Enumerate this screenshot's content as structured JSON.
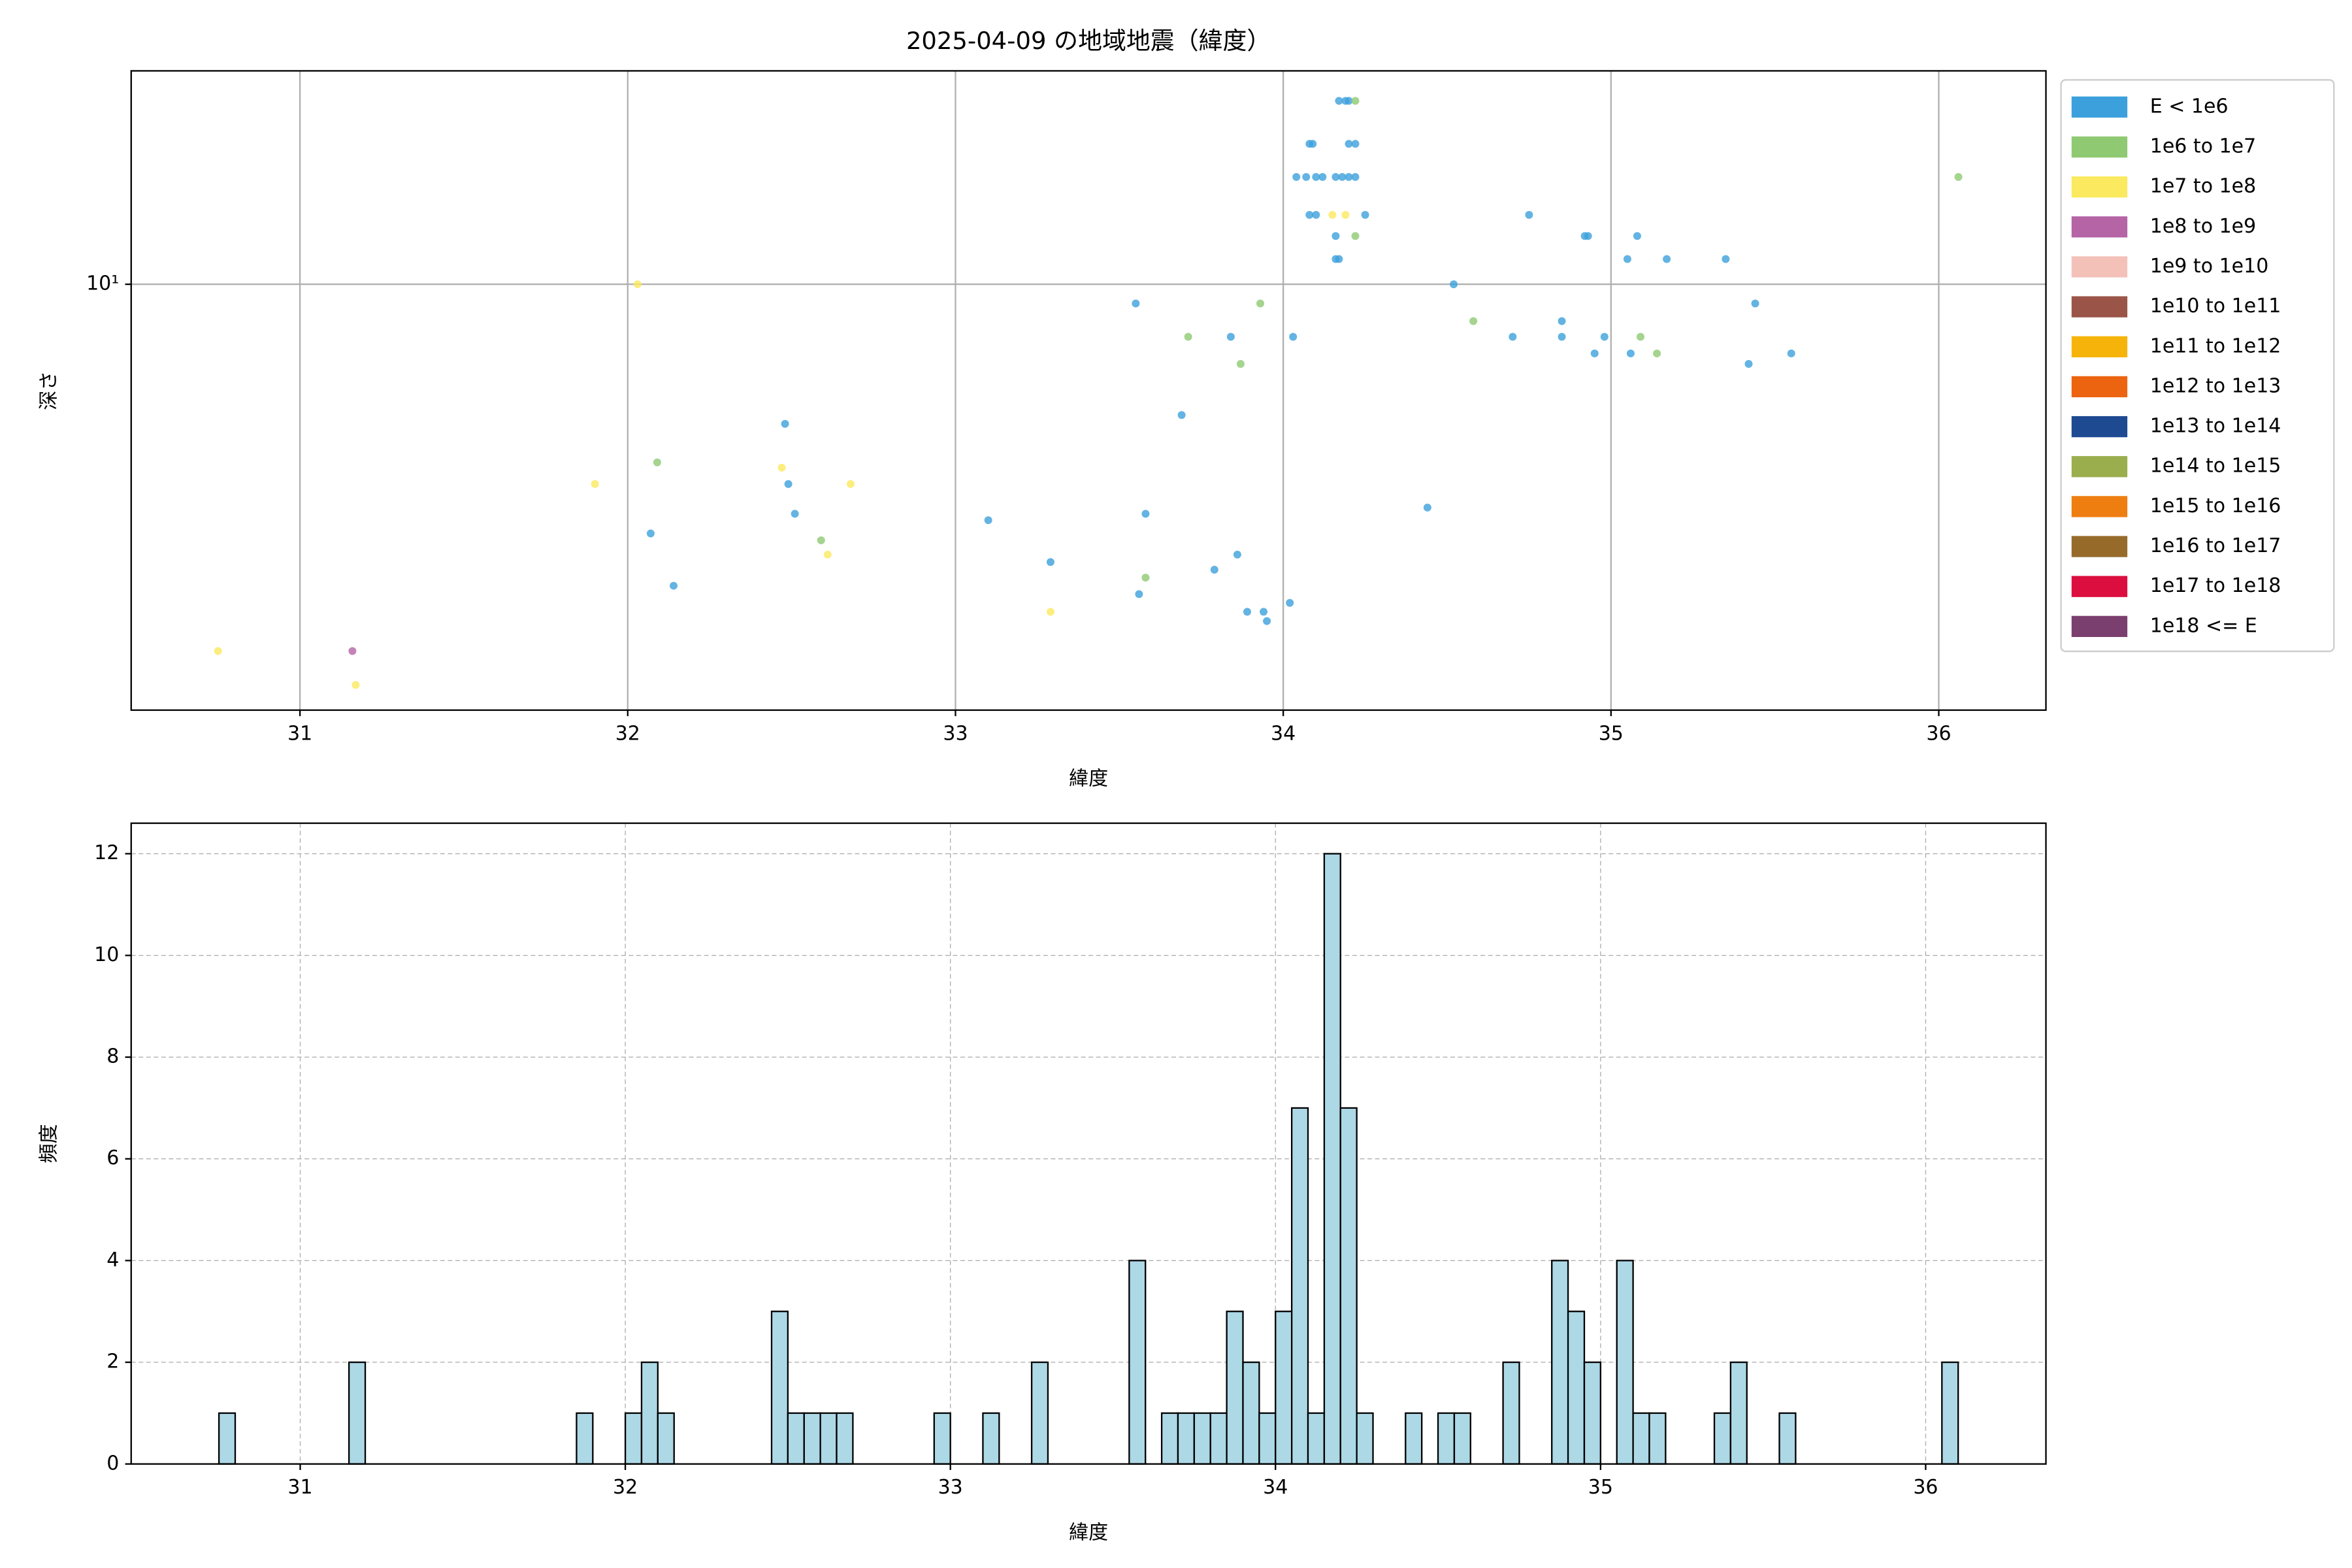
{
  "chart_data": [
    {
      "type": "scatter",
      "title": "2025-04-09 の地域地震（緯度）",
      "xlabel": "緯度",
      "ylabel": "深さ",
      "xlim": [
        30.485,
        36.327
      ],
      "ylim": [
        2.0,
        22.4
      ],
      "yscale": "log",
      "xticks": [
        31,
        32,
        33,
        34,
        35,
        36
      ],
      "yticks": [
        {
          "value": 10,
          "label": "10¹"
        }
      ],
      "grid": true,
      "grid_style": "solid",
      "legend": "right",
      "series": [
        {
          "name": "E < 1e6",
          "color": "#3ca0dc",
          "x": [
            34.17,
            34.19,
            34.2,
            34.08,
            34.09,
            34.2,
            34.22,
            34.04,
            34.07,
            34.1,
            34.12,
            34.16,
            34.18,
            34.2,
            34.22,
            34.08,
            34.1,
            34.25,
            34.75,
            34.16,
            34.92,
            34.93,
            35.08,
            34.16,
            34.17,
            35.05,
            35.17,
            35.35,
            34.52,
            33.55,
            35.44,
            34.85,
            33.84,
            34.03,
            34.7,
            34.85,
            34.98,
            34.95,
            35.06,
            35.55,
            35.42,
            33.69,
            32.48,
            32.49,
            32.51,
            33.1,
            33.58,
            34.44,
            32.07,
            33.86,
            33.29,
            33.79,
            32.14,
            33.56,
            33.89,
            33.94,
            33.95,
            34.02
          ],
          "values": [
            20,
            20,
            20,
            17,
            17,
            17,
            17,
            15,
            15,
            15,
            15,
            15,
            15,
            15,
            15,
            13,
            13,
            13,
            13,
            12,
            12,
            12,
            12,
            11,
            11,
            11,
            11,
            11,
            10,
            9.3,
            9.3,
            8.7,
            8.2,
            8.2,
            8.2,
            8.2,
            8.2,
            7.7,
            7.7,
            7.7,
            7.4,
            6.1,
            5.9,
            4.7,
            4.2,
            4.1,
            4.2,
            4.3,
            3.9,
            3.6,
            3.5,
            3.4,
            3.2,
            3.1,
            2.9,
            2.9,
            2.8,
            3.0
          ]
        },
        {
          "name": "1e6 to 1e7",
          "color": "#8fc972",
          "x": [
            34.22,
            36.06,
            34.22,
            33.93,
            34.58,
            33.71,
            35.09,
            33.87,
            35.14,
            32.09,
            32.59,
            33.58
          ],
          "values": [
            20,
            15,
            12,
            9.3,
            8.7,
            8.2,
            8.2,
            7.4,
            7.7,
            5.1,
            3.8,
            3.3
          ]
        },
        {
          "name": "1e7 to 1e8",
          "color": "#fbe95f",
          "x": [
            34.15,
            34.19,
            32.03,
            31.9,
            32.47,
            32.68,
            32.61,
            33.29,
            30.75,
            31.17
          ],
          "values": [
            13,
            13,
            10,
            4.7,
            5.0,
            4.7,
            3.6,
            2.9,
            2.5,
            2.2
          ]
        },
        {
          "name": "1e8 to 1e9",
          "color": "#b564a6",
          "x": [
            31.16
          ],
          "values": [
            2.5
          ]
        },
        {
          "name": "1e9 to 1e10",
          "color": "#f4c1b9",
          "x": [],
          "values": []
        },
        {
          "name": "1e10 to 1e11",
          "color": "#9a5548",
          "x": [],
          "values": []
        },
        {
          "name": "1e11 to 1e12",
          "color": "#f6b40a",
          "x": [],
          "values": []
        },
        {
          "name": "1e12 to 1e13",
          "color": "#ec6410",
          "x": [],
          "values": []
        },
        {
          "name": "1e13 to 1e14",
          "color": "#1d4a91",
          "x": [],
          "values": []
        },
        {
          "name": "1e14 to 1e15",
          "color": "#9aae4e",
          "x": [],
          "values": []
        },
        {
          "name": "1e15 to 1e16",
          "color": "#ef7e11",
          "x": [],
          "values": []
        },
        {
          "name": "1e16 to 1e17",
          "color": "#966b2a",
          "x": [],
          "values": []
        },
        {
          "name": "1e17 to 1e18",
          "color": "#dc0e3f",
          "x": [],
          "values": []
        },
        {
          "name": "1e18 <= E",
          "color": "#7a3f6e",
          "x": [],
          "values": []
        }
      ]
    },
    {
      "type": "histogram",
      "xlabel": "緯度",
      "ylabel": "頻度",
      "xlim": [
        30.48,
        36.37
      ],
      "ylim": [
        0,
        12.6
      ],
      "xticks": [
        31,
        32,
        33,
        34,
        35,
        36
      ],
      "yticks": [
        0,
        2,
        4,
        6,
        8,
        10,
        12
      ],
      "grid": true,
      "grid_style": "dashed",
      "color": "#add8e6",
      "edgecolor": "#000000",
      "bins": [
        30.75,
        30.8,
        30.85,
        30.9,
        30.95,
        31,
        31.05,
        31.1,
        31.15,
        31.2,
        31.25,
        31.3,
        31.35,
        31.4,
        31.45,
        31.5,
        31.55,
        31.6,
        31.65,
        31.7,
        31.75,
        31.8,
        31.85,
        31.9,
        31.95,
        32,
        32.05,
        32.1,
        32.15,
        32.2,
        32.25,
        32.3,
        32.35,
        32.4,
        32.45,
        32.5,
        32.55,
        32.6,
        32.65,
        32.7,
        32.75,
        32.8,
        32.85,
        32.9,
        32.95,
        33,
        33.05,
        33.1,
        33.15,
        33.2,
        33.25,
        33.3,
        33.35,
        33.4,
        33.45,
        33.5,
        33.55,
        33.6,
        33.65,
        33.7,
        33.75,
        33.8,
        33.85,
        33.9,
        33.95,
        34,
        34.05,
        34.1,
        34.15,
        34.2,
        34.25,
        34.3,
        34.35,
        34.4,
        34.45,
        34.5,
        34.55,
        34.6,
        34.65,
        34.7,
        34.75,
        34.8,
        34.85,
        34.9,
        34.95,
        35,
        35.05,
        35.1,
        35.15,
        35.2,
        35.25,
        35.3,
        35.35,
        35.4,
        35.45,
        35.5,
        35.55,
        35.6,
        35.65,
        35.7,
        35.75,
        35.8,
        35.85,
        35.9,
        35.95,
        36,
        36.05,
        36.1
      ],
      "values": [
        1,
        0,
        0,
        0,
        0,
        0,
        0,
        0,
        2,
        0,
        0,
        0,
        0,
        0,
        0,
        0,
        0,
        0,
        0,
        0,
        0,
        0,
        1,
        0,
        0,
        1,
        2,
        1,
        0,
        0,
        0,
        0,
        0,
        0,
        3,
        1,
        1,
        1,
        1,
        0,
        0,
        0,
        0,
        0,
        1,
        0,
        0,
        1,
        0,
        0,
        2,
        0,
        0,
        0,
        0,
        0,
        4,
        0,
        1,
        1,
        1,
        1,
        3,
        2,
        1,
        3,
        7,
        1,
        12,
        7,
        1,
        0,
        0,
        1,
        0,
        1,
        1,
        0,
        0,
        2,
        0,
        0,
        4,
        3,
        2,
        0,
        4,
        1,
        1,
        0,
        0,
        0,
        1,
        2,
        0,
        0,
        1,
        0,
        0,
        0,
        0,
        0,
        0,
        0,
        0,
        0,
        2
      ]
    }
  ]
}
